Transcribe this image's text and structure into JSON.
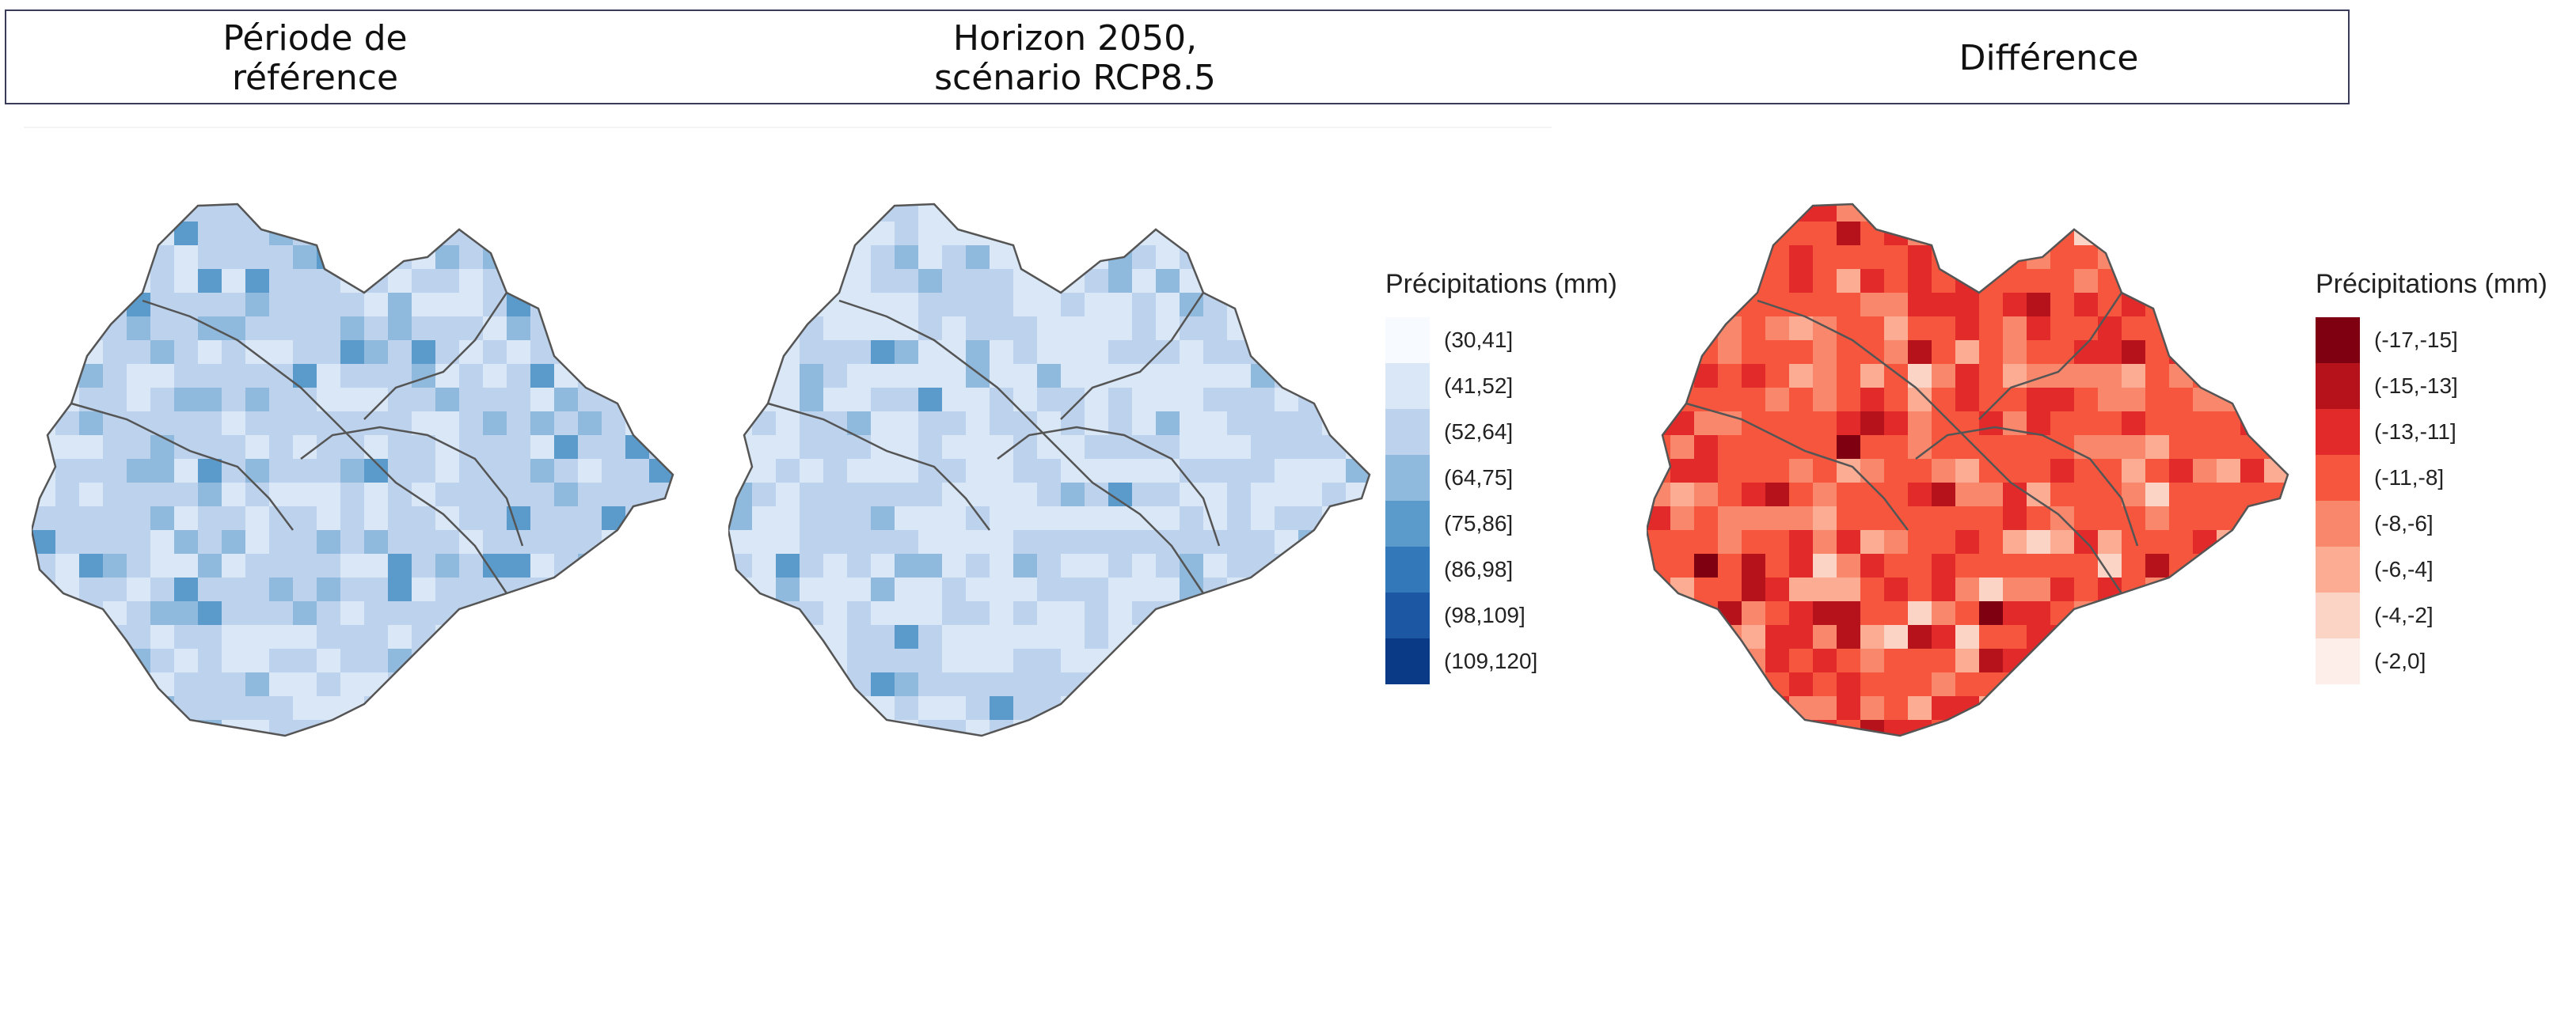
{
  "header": {
    "reference_title": "Période de\nréférence",
    "future_title": "Horizon 2050,\nscénario RCP8.5",
    "difference_title": "Différence"
  },
  "legend_blue": {
    "title": "Précipitations (mm)",
    "items": [
      {
        "label": "(30,41]",
        "color": "#f7fbff"
      },
      {
        "label": "(41,52]",
        "color": "#d9e7f6"
      },
      {
        "label": "(52,64]",
        "color": "#bdd2ec"
      },
      {
        "label": "(64,75]",
        "color": "#8fbadd"
      },
      {
        "label": "(75,86]",
        "color": "#5b9bcc"
      },
      {
        "label": "(86,98]",
        "color": "#3378b9"
      },
      {
        "label": "(98,109]",
        "color": "#1c57a4"
      },
      {
        "label": "(109,120]",
        "color": "#0a3a85"
      }
    ]
  },
  "legend_red": {
    "title": "Précipitations (mm)",
    "items": [
      {
        "label": "(-17,-15]",
        "color": "#7f0010"
      },
      {
        "label": "(-15,-13]",
        "color": "#b5121b"
      },
      {
        "label": "(-13,-11]",
        "color": "#e32a2a"
      },
      {
        "label": "(-11,-8]",
        "color": "#f5563d"
      },
      {
        "label": "(-8,-6]",
        "color": "#f9876b"
      },
      {
        "label": "(-6,-4]",
        "color": "#fbac92"
      },
      {
        "label": "(-4,-2]",
        "color": "#fcd4c6"
      },
      {
        "label": "(-2,0]",
        "color": "#fdeeea"
      }
    ]
  },
  "maps": {
    "reference": {
      "class_distribution": {
        "(41,52]": 0.2,
        "(52,64]": 0.6,
        "(64,75]": 0.15,
        "(75,86]": 0.05
      }
    },
    "future": {
      "class_distribution": {
        "(41,52]": 0.55,
        "(52,64]": 0.38,
        "(64,75]": 0.05,
        "(75,86]": 0.02
      }
    },
    "difference": {
      "class_distribution": {
        "(-17,-15]": 0.01,
        "(-15,-13]": 0.04,
        "(-13,-11]": 0.2,
        "(-11,-8]": 0.5,
        "(-8,-6]": 0.15,
        "(-6,-4]": 0.08,
        "(-4,-2]": 0.02
      }
    }
  }
}
